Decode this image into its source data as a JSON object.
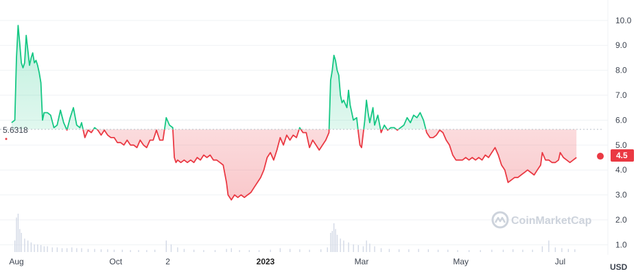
{
  "chart_data": {
    "type": "area",
    "baseline": 5.6318,
    "baseline_label": "5.6318",
    "current_value": 4.5,
    "current_label": "4.5",
    "unit": "USD",
    "ylim": [
      0.6,
      10.6
    ],
    "y_ticks": [
      {
        "value": 1.0,
        "label": "1.0"
      },
      {
        "value": 2.0,
        "label": "2.0"
      },
      {
        "value": 3.0,
        "label": "3.0"
      },
      {
        "value": 4.0,
        "label": "4.0"
      },
      {
        "value": 5.0,
        "label": "5.0"
      },
      {
        "value": 6.0,
        "label": "6.0"
      },
      {
        "value": 7.0,
        "label": "7.0"
      },
      {
        "value": 8.0,
        "label": "8.0"
      },
      {
        "value": 9.0,
        "label": "9.0"
      },
      {
        "value": 10.0,
        "label": "10.0"
      }
    ],
    "x_ticks": [
      {
        "date": "2022-08-01",
        "label": "Aug",
        "bold": false
      },
      {
        "date": "2022-10-01",
        "label": "Oct",
        "bold": false
      },
      {
        "date": "2022-11-02",
        "label": "2",
        "bold": false
      },
      {
        "date": "2023-01-01",
        "label": "2023",
        "bold": true
      },
      {
        "date": "2023-03-01",
        "label": "Mar",
        "bold": false
      },
      {
        "date": "2023-05-01",
        "label": "May",
        "bold": false
      },
      {
        "date": "2023-07-01",
        "label": "Jul",
        "bold": false
      }
    ],
    "series": [
      {
        "values": [
          [
            "2022-07-29",
            5.9
          ],
          [
            "2022-07-31",
            6.0
          ],
          [
            "2022-08-01",
            8.5
          ],
          [
            "2022-08-02",
            9.8
          ],
          [
            "2022-08-03",
            9.1
          ],
          [
            "2022-08-04",
            8.3
          ],
          [
            "2022-08-05",
            8.1
          ],
          [
            "2022-08-06",
            8.3
          ],
          [
            "2022-08-07",
            9.4
          ],
          [
            "2022-08-08",
            8.8
          ],
          [
            "2022-08-09",
            8.2
          ],
          [
            "2022-08-10",
            8.5
          ],
          [
            "2022-08-11",
            8.7
          ],
          [
            "2022-08-12",
            8.3
          ],
          [
            "2022-08-13",
            8.4
          ],
          [
            "2022-08-14",
            8.2
          ],
          [
            "2022-08-15",
            7.9
          ],
          [
            "2022-08-16",
            7.5
          ],
          [
            "2022-08-17",
            6.0
          ],
          [
            "2022-08-18",
            6.3
          ],
          [
            "2022-08-20",
            6.3
          ],
          [
            "2022-08-22",
            6.2
          ],
          [
            "2022-08-24",
            5.7
          ],
          [
            "2022-08-26",
            5.8
          ],
          [
            "2022-08-28",
            6.4
          ],
          [
            "2022-08-30",
            5.9
          ],
          [
            "2022-09-01",
            5.6
          ],
          [
            "2022-09-03",
            6.1
          ],
          [
            "2022-09-05",
            6.5
          ],
          [
            "2022-09-07",
            5.8
          ],
          [
            "2022-09-09",
            5.7
          ],
          [
            "2022-09-10",
            5.9
          ],
          [
            "2022-09-12",
            5.3
          ],
          [
            "2022-09-14",
            5.6
          ],
          [
            "2022-09-16",
            5.5
          ],
          [
            "2022-09-18",
            5.7
          ],
          [
            "2022-09-20",
            5.6
          ],
          [
            "2022-09-22",
            5.4
          ],
          [
            "2022-09-24",
            5.6
          ],
          [
            "2022-09-26",
            5.4
          ],
          [
            "2022-09-28",
            5.3
          ],
          [
            "2022-09-30",
            5.3
          ],
          [
            "2022-10-02",
            5.1
          ],
          [
            "2022-10-04",
            5.1
          ],
          [
            "2022-10-06",
            5.0
          ],
          [
            "2022-10-08",
            5.2
          ],
          [
            "2022-10-10",
            5.0
          ],
          [
            "2022-10-12",
            5.0
          ],
          [
            "2022-10-14",
            4.9
          ],
          [
            "2022-10-16",
            5.2
          ],
          [
            "2022-10-18",
            5.0
          ],
          [
            "2022-10-20",
            4.9
          ],
          [
            "2022-10-22",
            5.2
          ],
          [
            "2022-10-24",
            5.2
          ],
          [
            "2022-10-26",
            5.6
          ],
          [
            "2022-10-28",
            5.2
          ],
          [
            "2022-10-30",
            5.2
          ],
          [
            "2022-11-01",
            6.1
          ],
          [
            "2022-11-03",
            5.8
          ],
          [
            "2022-11-05",
            5.7
          ],
          [
            "2022-11-06",
            4.5
          ],
          [
            "2022-11-07",
            4.3
          ],
          [
            "2022-11-08",
            4.4
          ],
          [
            "2022-11-10",
            4.3
          ],
          [
            "2022-11-12",
            4.4
          ],
          [
            "2022-11-14",
            4.3
          ],
          [
            "2022-11-16",
            4.4
          ],
          [
            "2022-11-18",
            4.3
          ],
          [
            "2022-11-20",
            4.5
          ],
          [
            "2022-11-22",
            4.4
          ],
          [
            "2022-11-24",
            4.6
          ],
          [
            "2022-11-26",
            4.5
          ],
          [
            "2022-11-28",
            4.6
          ],
          [
            "2022-11-30",
            4.4
          ],
          [
            "2022-12-02",
            4.4
          ],
          [
            "2022-12-04",
            4.3
          ],
          [
            "2022-12-06",
            4.2
          ],
          [
            "2022-12-08",
            3.5
          ],
          [
            "2022-12-09",
            3.0
          ],
          [
            "2022-12-10",
            2.9
          ],
          [
            "2022-12-11",
            2.8
          ],
          [
            "2022-12-13",
            3.0
          ],
          [
            "2022-12-15",
            2.9
          ],
          [
            "2022-12-17",
            3.0
          ],
          [
            "2022-12-19",
            2.9
          ],
          [
            "2022-12-21",
            3.0
          ],
          [
            "2022-12-23",
            3.1
          ],
          [
            "2022-12-25",
            3.3
          ],
          [
            "2022-12-27",
            3.5
          ],
          [
            "2022-12-29",
            3.7
          ],
          [
            "2022-12-31",
            4.0
          ],
          [
            "2023-01-02",
            4.5
          ],
          [
            "2023-01-04",
            4.7
          ],
          [
            "2023-01-06",
            4.4
          ],
          [
            "2023-01-08",
            4.8
          ],
          [
            "2023-01-10",
            5.3
          ],
          [
            "2023-01-12",
            5.0
          ],
          [
            "2023-01-14",
            5.4
          ],
          [
            "2023-01-16",
            5.2
          ],
          [
            "2023-01-18",
            5.4
          ],
          [
            "2023-01-20",
            5.3
          ],
          [
            "2023-01-22",
            5.7
          ],
          [
            "2023-01-24",
            5.5
          ],
          [
            "2023-01-26",
            5.5
          ],
          [
            "2023-01-28",
            4.9
          ],
          [
            "2023-01-30",
            5.2
          ],
          [
            "2023-02-01",
            5.0
          ],
          [
            "2023-02-03",
            4.8
          ],
          [
            "2023-02-05",
            5.0
          ],
          [
            "2023-02-07",
            5.2
          ],
          [
            "2023-02-09",
            5.5
          ],
          [
            "2023-02-10",
            7.6
          ],
          [
            "2023-02-11",
            8.0
          ],
          [
            "2023-02-12",
            8.6
          ],
          [
            "2023-02-13",
            8.4
          ],
          [
            "2023-02-14",
            8.0
          ],
          [
            "2023-02-15",
            7.8
          ],
          [
            "2023-02-16",
            7.0
          ],
          [
            "2023-02-17",
            6.7
          ],
          [
            "2023-02-18",
            6.8
          ],
          [
            "2023-02-20",
            6.5
          ],
          [
            "2023-02-21",
            7.2
          ],
          [
            "2023-02-22",
            6.6
          ],
          [
            "2023-02-24",
            6.0
          ],
          [
            "2023-02-26",
            6.1
          ],
          [
            "2023-02-27",
            5.5
          ],
          [
            "2023-02-28",
            5.0
          ],
          [
            "2023-03-01",
            4.9
          ],
          [
            "2023-03-03",
            6.0
          ],
          [
            "2023-03-04",
            6.8
          ],
          [
            "2023-03-05",
            6.3
          ],
          [
            "2023-03-06",
            5.9
          ],
          [
            "2023-03-08",
            6.5
          ],
          [
            "2023-03-09",
            5.8
          ],
          [
            "2023-03-11",
            6.2
          ],
          [
            "2023-03-13",
            5.5
          ],
          [
            "2023-03-15",
            5.8
          ],
          [
            "2023-03-17",
            5.6
          ],
          [
            "2023-03-19",
            5.7
          ],
          [
            "2023-03-21",
            5.7
          ],
          [
            "2023-03-23",
            5.6
          ],
          [
            "2023-03-25",
            5.7
          ],
          [
            "2023-03-27",
            5.8
          ],
          [
            "2023-03-29",
            6.1
          ],
          [
            "2023-03-31",
            5.9
          ],
          [
            "2023-04-02",
            6.2
          ],
          [
            "2023-04-04",
            6.1
          ],
          [
            "2023-04-06",
            6.3
          ],
          [
            "2023-04-08",
            6.0
          ],
          [
            "2023-04-10",
            5.5
          ],
          [
            "2023-04-12",
            5.3
          ],
          [
            "2023-04-14",
            5.3
          ],
          [
            "2023-04-16",
            5.4
          ],
          [
            "2023-04-18",
            5.6
          ],
          [
            "2023-04-20",
            5.5
          ],
          [
            "2023-04-22",
            5.2
          ],
          [
            "2023-04-24",
            5.0
          ],
          [
            "2023-04-26",
            4.6
          ],
          [
            "2023-04-28",
            4.4
          ],
          [
            "2023-04-30",
            4.4
          ],
          [
            "2023-05-02",
            4.4
          ],
          [
            "2023-05-04",
            4.5
          ],
          [
            "2023-05-06",
            4.4
          ],
          [
            "2023-05-08",
            4.5
          ],
          [
            "2023-05-10",
            4.4
          ],
          [
            "2023-05-12",
            4.5
          ],
          [
            "2023-05-14",
            4.4
          ],
          [
            "2023-05-16",
            4.6
          ],
          [
            "2023-05-18",
            4.5
          ],
          [
            "2023-05-20",
            4.7
          ],
          [
            "2023-05-22",
            4.9
          ],
          [
            "2023-05-24",
            4.6
          ],
          [
            "2023-05-26",
            4.2
          ],
          [
            "2023-05-28",
            4.0
          ],
          [
            "2023-05-30",
            3.5
          ],
          [
            "2023-06-01",
            3.6
          ],
          [
            "2023-06-03",
            3.7
          ],
          [
            "2023-06-05",
            3.7
          ],
          [
            "2023-06-07",
            3.8
          ],
          [
            "2023-06-09",
            3.9
          ],
          [
            "2023-06-11",
            4.0
          ],
          [
            "2023-06-13",
            3.9
          ],
          [
            "2023-06-15",
            3.8
          ],
          [
            "2023-06-17",
            4.0
          ],
          [
            "2023-06-19",
            4.2
          ],
          [
            "2023-06-20",
            4.7
          ],
          [
            "2023-06-22",
            4.4
          ],
          [
            "2023-06-24",
            4.4
          ],
          [
            "2023-06-26",
            4.3
          ],
          [
            "2023-06-28",
            4.3
          ],
          [
            "2023-06-30",
            4.4
          ],
          [
            "2023-07-01",
            4.7
          ],
          [
            "2023-07-03",
            4.5
          ],
          [
            "2023-07-05",
            4.4
          ],
          [
            "2023-07-07",
            4.3
          ],
          [
            "2023-07-09",
            4.4
          ],
          [
            "2023-07-11",
            4.5
          ]
        ]
      }
    ],
    "volume": [
      [
        "2022-07-31",
        0.3
      ],
      [
        "2022-08-01",
        0.9
      ],
      [
        "2022-08-02",
        1.0
      ],
      [
        "2022-08-03",
        0.6
      ],
      [
        "2022-08-04",
        0.5
      ],
      [
        "2022-08-06",
        0.35
      ],
      [
        "2022-08-08",
        0.3
      ],
      [
        "2022-08-10",
        0.25
      ],
      [
        "2022-08-12",
        0.2
      ],
      [
        "2022-08-14",
        0.2
      ],
      [
        "2022-08-16",
        0.18
      ],
      [
        "2022-08-18",
        0.15
      ],
      [
        "2022-08-20",
        0.15
      ],
      [
        "2022-08-23",
        0.12
      ],
      [
        "2022-08-26",
        0.12
      ],
      [
        "2022-08-29",
        0.1
      ],
      [
        "2022-09-01",
        0.1
      ],
      [
        "2022-09-04",
        0.12
      ],
      [
        "2022-09-07",
        0.1
      ],
      [
        "2022-09-10",
        0.1
      ],
      [
        "2022-09-14",
        0.08
      ],
      [
        "2022-09-18",
        0.08
      ],
      [
        "2022-09-22",
        0.07
      ],
      [
        "2022-09-26",
        0.07
      ],
      [
        "2022-09-30",
        0.06
      ],
      [
        "2022-10-05",
        0.06
      ],
      [
        "2022-10-10",
        0.05
      ],
      [
        "2022-10-15",
        0.05
      ],
      [
        "2022-10-20",
        0.05
      ],
      [
        "2022-10-25",
        0.06
      ],
      [
        "2022-11-01",
        0.3
      ],
      [
        "2022-11-04",
        0.2
      ],
      [
        "2022-11-08",
        0.12
      ],
      [
        "2022-11-12",
        0.08
      ],
      [
        "2022-11-18",
        0.06
      ],
      [
        "2022-11-24",
        0.05
      ],
      [
        "2022-12-01",
        0.05
      ],
      [
        "2022-12-08",
        0.08
      ],
      [
        "2022-12-11",
        0.1
      ],
      [
        "2022-12-16",
        0.05
      ],
      [
        "2022-12-22",
        0.05
      ],
      [
        "2022-12-28",
        0.05
      ],
      [
        "2023-01-04",
        0.06
      ],
      [
        "2023-01-10",
        0.1
      ],
      [
        "2023-01-16",
        0.08
      ],
      [
        "2023-01-22",
        0.07
      ],
      [
        "2023-01-28",
        0.06
      ],
      [
        "2023-02-04",
        0.07
      ],
      [
        "2023-02-08",
        0.12
      ],
      [
        "2023-02-10",
        0.5
      ],
      [
        "2023-02-11",
        0.55
      ],
      [
        "2023-02-12",
        0.75
      ],
      [
        "2023-02-13",
        0.6
      ],
      [
        "2023-02-14",
        0.45
      ],
      [
        "2023-02-16",
        0.35
      ],
      [
        "2023-02-18",
        0.3
      ],
      [
        "2023-02-21",
        0.25
      ],
      [
        "2023-02-24",
        0.2
      ],
      [
        "2023-02-27",
        0.18
      ],
      [
        "2023-03-02",
        0.15
      ],
      [
        "2023-03-04",
        0.3
      ],
      [
        "2023-03-06",
        0.22
      ],
      [
        "2023-03-09",
        0.15
      ],
      [
        "2023-03-13",
        0.1
      ],
      [
        "2023-03-18",
        0.08
      ],
      [
        "2023-03-24",
        0.07
      ],
      [
        "2023-03-30",
        0.07
      ],
      [
        "2023-04-05",
        0.08
      ],
      [
        "2023-04-11",
        0.07
      ],
      [
        "2023-04-17",
        0.06
      ],
      [
        "2023-04-23",
        0.06
      ],
      [
        "2023-04-29",
        0.05
      ],
      [
        "2023-05-06",
        0.05
      ],
      [
        "2023-05-13",
        0.05
      ],
      [
        "2023-05-20",
        0.06
      ],
      [
        "2023-05-27",
        0.06
      ],
      [
        "2023-06-02",
        0.07
      ],
      [
        "2023-06-08",
        0.06
      ],
      [
        "2023-06-14",
        0.06
      ],
      [
        "2023-06-20",
        0.15
      ],
      [
        "2023-06-24",
        0.3
      ],
      [
        "2023-06-28",
        0.12
      ],
      [
        "2023-07-02",
        0.1
      ],
      [
        "2023-07-06",
        0.08
      ],
      [
        "2023-07-10",
        0.07
      ]
    ]
  },
  "colors": {
    "up": "#16c784",
    "down": "#ea3943",
    "grid": "#eff2f5",
    "axis_text": "#3d4450",
    "volume": "#cfd6e4"
  },
  "watermark": {
    "text": "CoinMarketCap",
    "icon": "coinmarketcap-logo-icon"
  }
}
